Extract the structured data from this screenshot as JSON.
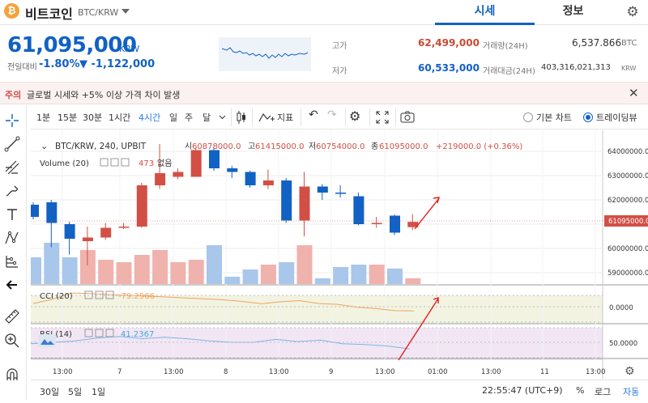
{
  "header": {
    "coin_icon_glyph": "₿",
    "coin_name": "비트코인",
    "coin_pair": "BTC/KRW",
    "tabs": [
      {
        "label": "시세",
        "active": true
      },
      {
        "label": "정보",
        "active": false
      }
    ]
  },
  "ticker": {
    "price": "61,095,000",
    "unit": "KRW",
    "change_label": "전일대비",
    "change_rate": "-1.80%",
    "change_amount": "▼ -1,122,000",
    "high_label": "고가",
    "high": "62,499,000",
    "low_label": "저가",
    "low": "60,533,000",
    "volume_label": "거래량(24H)",
    "volume": "6,537.866",
    "volume_unit": "BTC",
    "value_label": "거래대금(24H)",
    "value": "403,316,021,313",
    "value_unit": "KRW"
  },
  "notice": {
    "tag": "주의",
    "text": "글로벌 시세와 +5% 이상 가격 차이 발생",
    "close_glyph": "✕"
  },
  "toolbar": {
    "intervals": [
      {
        "label": "1분",
        "active": false
      },
      {
        "label": "15분",
        "active": false
      },
      {
        "label": "30분",
        "active": false
      },
      {
        "label": "1시간",
        "active": false
      },
      {
        "label": "4시간",
        "active": true
      },
      {
        "label": "일",
        "active": false
      },
      {
        "label": "주",
        "active": false
      },
      {
        "label": "달",
        "active": false
      }
    ],
    "indicator_label": "지표",
    "basic_chart_label": "기본 차트",
    "trading_view_label": "트레이딩뷰",
    "selected_chart": "트레이딩뷰"
  },
  "legend": {
    "symbol": "BTC/KRW, 240, UPBIT",
    "open_label": "시",
    "open": "60878000.0",
    "high_label": "고",
    "high": "61415000.0",
    "low_label": "저",
    "low": "60754000.0",
    "close_label": "종",
    "close": "61095000.0",
    "change": "+219000.0 (+0.36%)",
    "volume_label": "Volume (20)",
    "volume_value": "473",
    "volume_extra": "없음",
    "cci_label": "CCI (20)",
    "cci_value": "-79.2966",
    "rsi_label": "RSI (14)",
    "rsi_value": "41.2367"
  },
  "bottom": {
    "ranges": [
      "30일",
      "5일",
      "1일"
    ],
    "clock": "22:55:47 (UTC+9)",
    "percent": "%",
    "log": "로그",
    "auto": "자동"
  },
  "colors": {
    "up": "#d24f45",
    "down": "#1261c4",
    "vol_up": "#f0b2ad",
    "vol_down": "#a9c6eb",
    "cci_bg": "#f3f3e2",
    "rsi_bg": "#f2e6f4",
    "cci_line": "#f0a45c",
    "rsi_line": "#7ab5e8",
    "arrow": "#e31e1e"
  },
  "chart_data": {
    "type": "candlestick",
    "price_axis_ticks": [
      "64000000.0",
      "63000000.0",
      "62000000.0",
      "61000000.0",
      "60000000.0",
      "59000000.0"
    ],
    "last_price_label": "61095000.0",
    "cci_ticks": [
      "0.0000"
    ],
    "rsi_ticks": [
      "50.0000"
    ],
    "time_ticks": [
      "13:00",
      "7",
      "13:00",
      "8",
      "13:00",
      "9",
      "13:00",
      "01:00",
      "13:00",
      "11",
      "13:00"
    ],
    "candles": [
      {
        "open": 61800000,
        "close": 61300000,
        "high": 61900000,
        "low": 61200000,
        "volume": 0.55
      },
      {
        "open": 61900000,
        "close": 61050000,
        "high": 62000000,
        "low": 60050000,
        "volume": 0.85
      },
      {
        "open": 61000000,
        "close": 60400000,
        "high": 61100000,
        "low": 59750000,
        "volume": 0.55
      },
      {
        "open": 60300000,
        "close": 60450000,
        "high": 60900000,
        "low": 59300000,
        "volume": 0.7
      },
      {
        "open": 60450000,
        "close": 60850000,
        "high": 61050000,
        "low": 60350000,
        "volume": 0.5
      },
      {
        "open": 60850000,
        "close": 60900000,
        "high": 61050000,
        "low": 60800000,
        "volume": 0.45
      },
      {
        "open": 60900000,
        "close": 62600000,
        "high": 62700000,
        "low": 60850000,
        "volume": 0.6
      },
      {
        "open": 62600000,
        "close": 63100000,
        "high": 64300000,
        "low": 62450000,
        "volume": 0.7
      },
      {
        "open": 62950000,
        "close": 63150000,
        "high": 63300000,
        "low": 62850000,
        "volume": 0.45
      },
      {
        "open": 62950000,
        "close": 64050000,
        "high": 64150000,
        "low": 62950000,
        "volume": 0.5
      },
      {
        "open": 64050000,
        "close": 63300000,
        "high": 64150000,
        "low": 63200000,
        "volume": 0.8
      },
      {
        "open": 63300000,
        "close": 63150000,
        "high": 63400000,
        "low": 62900000,
        "volume": 0.15
      },
      {
        "open": 63150000,
        "close": 62600000,
        "high": 63200000,
        "low": 62500000,
        "volume": 0.3
      },
      {
        "open": 62600000,
        "close": 62800000,
        "high": 63250000,
        "low": 62450000,
        "volume": 0.4
      },
      {
        "open": 62800000,
        "close": 61150000,
        "high": 62900000,
        "low": 61050000,
        "volume": 0.45
      },
      {
        "open": 61150000,
        "close": 62550000,
        "high": 63150000,
        "low": 60500000,
        "volume": 0.8
      },
      {
        "open": 62550000,
        "close": 62300000,
        "high": 62650000,
        "low": 62000000,
        "volume": 0.12
      },
      {
        "open": 62300000,
        "close": 62250000,
        "high": 62600000,
        "low": 62100000,
        "volume": 0.35
      },
      {
        "open": 62150000,
        "close": 61000000,
        "high": 62300000,
        "low": 60950000,
        "volume": 0.4
      },
      {
        "open": 61000000,
        "close": 61050000,
        "high": 61300000,
        "low": 60850000,
        "volume": 0.4
      },
      {
        "open": 61350000,
        "close": 60650000,
        "high": 61400000,
        "low": 60550000,
        "volume": 0.32
      },
      {
        "open": 60878000,
        "close": 61095000,
        "high": 61415000,
        "low": 60754000,
        "volume": 0.12
      }
    ],
    "cci": [
      60,
      140,
      260,
      250,
      230,
      215,
      200,
      185,
      165,
      150,
      130,
      100,
      55,
      95,
      115,
      60,
      45,
      -10,
      -35,
      -75,
      -79
    ],
    "rsi": [
      48,
      50,
      52,
      56,
      58,
      55,
      57,
      55,
      52,
      50,
      50,
      54,
      51,
      53,
      48,
      47,
      45,
      41
    ]
  }
}
